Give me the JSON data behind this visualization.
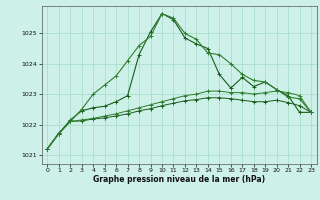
{
  "title": "Graphe pression niveau de la mer (hPa)",
  "background_color": "#cdf0e8",
  "grid_color": "#aaddcc",
  "line_color_dark": "#1a5c1a",
  "line_color_mid": "#2e7d2e",
  "xlim": [
    -0.5,
    23.5
  ],
  "ylim": [
    1020.7,
    1025.9
  ],
  "yticks": [
    1021,
    1022,
    1023,
    1024,
    1025
  ],
  "xticks": [
    0,
    1,
    2,
    3,
    4,
    5,
    6,
    7,
    8,
    9,
    10,
    11,
    12,
    13,
    14,
    15,
    16,
    17,
    18,
    19,
    20,
    21,
    22,
    23
  ],
  "line1": [
    1021.2,
    1021.7,
    1022.1,
    1022.5,
    1023.0,
    1023.3,
    1023.6,
    1024.1,
    1024.6,
    1024.9,
    1025.65,
    1025.5,
    1025.0,
    1024.8,
    1024.35,
    1024.3,
    1024.0,
    1023.65,
    1023.45,
    1023.4,
    1023.15,
    1022.9,
    1022.85,
    1022.4
  ],
  "line2": [
    1021.2,
    1021.7,
    1022.15,
    1022.45,
    1022.55,
    1022.6,
    1022.75,
    1022.95,
    1024.3,
    1025.05,
    1025.65,
    1025.45,
    1024.85,
    1024.65,
    1024.5,
    1023.65,
    1023.2,
    1023.55,
    1023.25,
    1023.4,
    1023.15,
    1022.95,
    1022.4,
    1022.4
  ],
  "line3": [
    1021.2,
    1021.7,
    1022.1,
    1022.15,
    1022.2,
    1022.28,
    1022.35,
    1022.45,
    1022.55,
    1022.65,
    1022.75,
    1022.85,
    1022.95,
    1023.0,
    1023.1,
    1023.1,
    1023.05,
    1023.05,
    1023.0,
    1023.05,
    1023.1,
    1023.05,
    1022.95,
    1022.4
  ],
  "line4": [
    1021.2,
    1021.72,
    1022.1,
    1022.12,
    1022.18,
    1022.22,
    1022.28,
    1022.35,
    1022.45,
    1022.52,
    1022.62,
    1022.7,
    1022.78,
    1022.82,
    1022.88,
    1022.88,
    1022.85,
    1022.8,
    1022.75,
    1022.75,
    1022.8,
    1022.72,
    1022.62,
    1022.4
  ]
}
